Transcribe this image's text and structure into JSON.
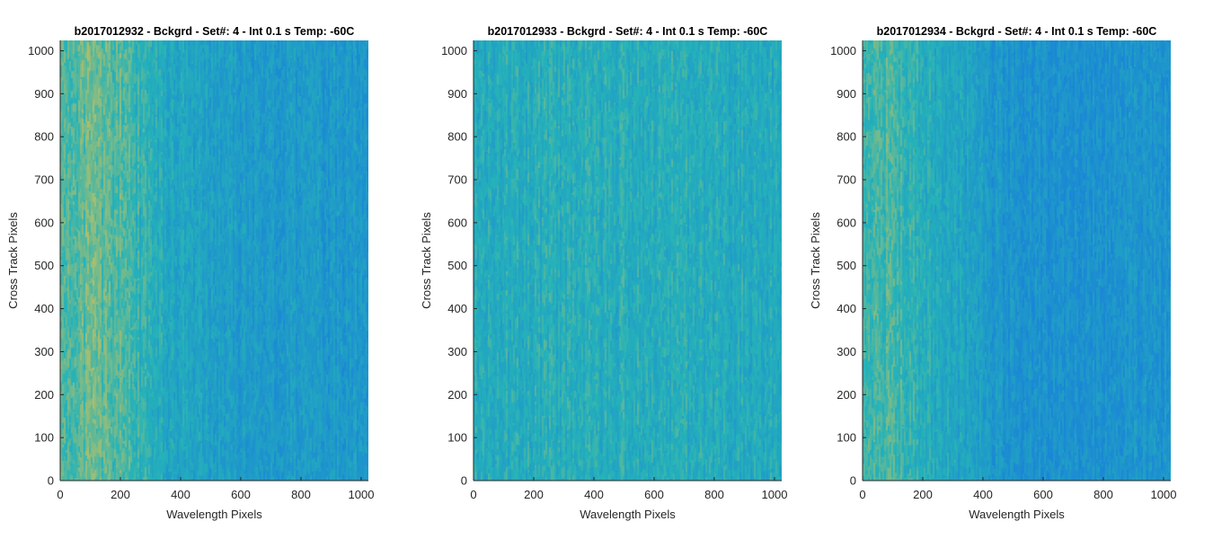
{
  "colors": {
    "colormap_low": "#1a86d6",
    "colormap_mid": "#26b3b8",
    "colormap_high": "#e3c44e",
    "axis": "#262626"
  },
  "chart_data": [
    {
      "type": "heatmap",
      "title": "b2017012932 - Bckgrd - Set#: 4 - Int 0.1 s Temp: -60C",
      "xlabel": "Wavelength Pixels",
      "ylabel": "Cross Track Pixels",
      "xlim": [
        0,
        1024
      ],
      "ylim": [
        0,
        1024
      ],
      "xticks": [
        0,
        200,
        400,
        600,
        800,
        1000
      ],
      "yticks": [
        0,
        100,
        200,
        300,
        400,
        500,
        600,
        700,
        800,
        900,
        1000
      ],
      "intensity_profile": {
        "wavelength": [
          0,
          100,
          200,
          300,
          400,
          500,
          600,
          700,
          800,
          900,
          1024
        ],
        "relative_level": [
          0.62,
          0.68,
          0.6,
          0.45,
          0.35,
          0.28,
          0.24,
          0.24,
          0.23,
          0.2,
          0.22
        ]
      }
    },
    {
      "type": "heatmap",
      "title": "b2017012933 - Bckgrd - Set#: 4 - Int 0.1 s Temp: -60C",
      "xlabel": "Wavelength Pixels",
      "ylabel": "Cross Track Pixels",
      "xlim": [
        0,
        1024
      ],
      "ylim": [
        0,
        1024
      ],
      "xticks": [
        0,
        200,
        400,
        600,
        800,
        1000
      ],
      "yticks": [
        0,
        100,
        200,
        300,
        400,
        500,
        600,
        700,
        800,
        900,
        1000
      ],
      "intensity_profile": {
        "wavelength": [
          0,
          100,
          200,
          300,
          400,
          500,
          600,
          700,
          800,
          900,
          1024
        ],
        "relative_level": [
          0.42,
          0.43,
          0.44,
          0.43,
          0.44,
          0.45,
          0.43,
          0.44,
          0.42,
          0.41,
          0.42
        ]
      }
    },
    {
      "type": "heatmap",
      "title": "b2017012934 - Bckgrd - Set#: 4 - Int 0.1 s Temp: -60C",
      "xlabel": "Wavelength Pixels",
      "ylabel": "Cross Track Pixels",
      "xlim": [
        0,
        1024
      ],
      "ylim": [
        0,
        1024
      ],
      "xticks": [
        0,
        200,
        400,
        600,
        800,
        1000
      ],
      "yticks": [
        0,
        100,
        200,
        300,
        400,
        500,
        600,
        700,
        800,
        900,
        1000
      ],
      "intensity_profile": {
        "wavelength": [
          0,
          100,
          200,
          300,
          400,
          500,
          600,
          700,
          800,
          900,
          1024
        ],
        "relative_level": [
          0.58,
          0.56,
          0.45,
          0.35,
          0.24,
          0.14,
          0.12,
          0.12,
          0.14,
          0.16,
          0.16
        ]
      }
    }
  ]
}
